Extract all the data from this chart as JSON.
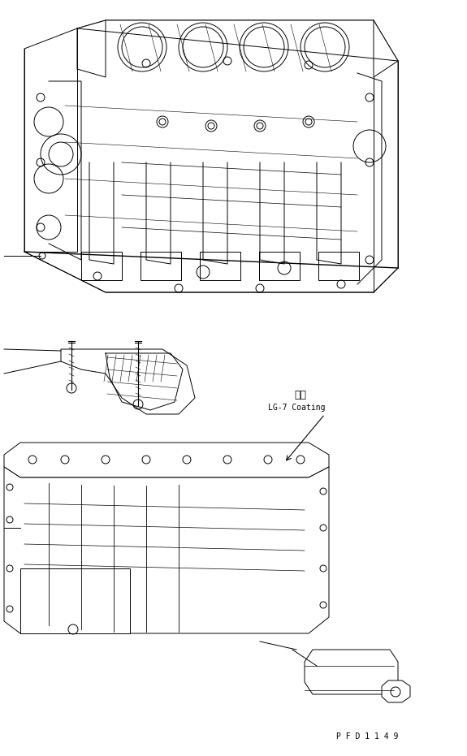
{
  "title": "",
  "bg_color": "#ffffff",
  "line_color": "#000000",
  "annotation_text_1": "塗布",
  "annotation_text_2": "LG-7 Coating",
  "watermark": "P F D 1 1 4 9",
  "fig_width": 5.75,
  "fig_height": 9.31,
  "dpi": 100
}
